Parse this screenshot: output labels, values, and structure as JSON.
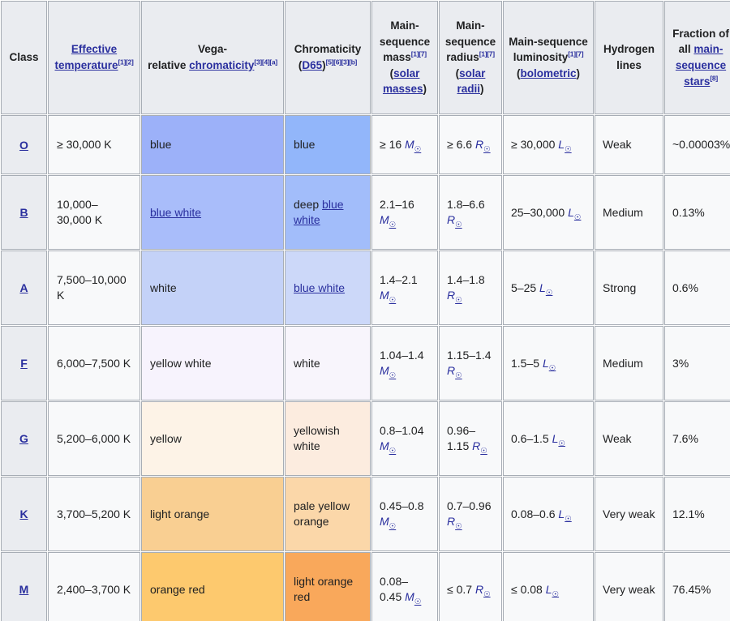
{
  "colors": {
    "header_bg": "#eaecf0",
    "cell_bg": "#f8f9fa",
    "border": "#a7adb5",
    "link": "#2a2f9e",
    "text": "#202122"
  },
  "solar_symbol": "☉",
  "header": {
    "columns": [
      {
        "key": "class",
        "segments": [
          {
            "t": "Class"
          }
        ]
      },
      {
        "key": "temperature",
        "segments": [
          {
            "a": "Effective temperature"
          },
          {
            "s": "[1][2]"
          }
        ]
      },
      {
        "key": "vega",
        "segments": [
          {
            "t": "Vega-"
          },
          {
            "b": 1
          },
          {
            "t": "relative "
          },
          {
            "a": "chromaticity"
          },
          {
            "s": "[3][4][a]"
          }
        ]
      },
      {
        "key": "d65",
        "segments": [
          {
            "t": "Chromaticity ("
          },
          {
            "a": "D65"
          },
          {
            "t": ")"
          },
          {
            "s": "[5][6][3][b]"
          }
        ]
      },
      {
        "key": "mass",
        "segments": [
          {
            "t": "Main-sequence mass"
          },
          {
            "s": "[1][7]"
          },
          {
            "t": " ("
          },
          {
            "a": "solar masses"
          },
          {
            "t": ")"
          }
        ]
      },
      {
        "key": "radius",
        "segments": [
          {
            "t": "Main-sequence radius"
          },
          {
            "s": "[1][7]"
          },
          {
            "t": " ("
          },
          {
            "a": "solar radii"
          },
          {
            "t": ")"
          }
        ]
      },
      {
        "key": "luminosity",
        "segments": [
          {
            "t": "Main-sequence luminosity"
          },
          {
            "s": "[1][7]"
          },
          {
            "t": " ("
          },
          {
            "a": "bolometric"
          },
          {
            "t": ")"
          }
        ]
      },
      {
        "key": "hydrogen",
        "segments": [
          {
            "t": "Hydrogen lines"
          }
        ]
      },
      {
        "key": "fraction",
        "segments": [
          {
            "t": "Fraction of all "
          },
          {
            "a": "main-sequence stars"
          },
          {
            "s": "[8]"
          }
        ]
      }
    ]
  },
  "rows": [
    {
      "class": "O",
      "temperature": "≥ 30,000 K",
      "vega": {
        "bg": "#9cb1f9",
        "segments": [
          {
            "t": "blue"
          }
        ]
      },
      "d65": {
        "bg": "#92b6fa",
        "segments": [
          {
            "t": "blue"
          }
        ]
      },
      "mass": [
        {
          "t": "≥ 16 "
        },
        {
          "y": "M"
        }
      ],
      "radius": [
        {
          "t": "≥ 6.6 "
        },
        {
          "y": "R"
        }
      ],
      "luminosity": [
        {
          "t": "≥ 30,000 "
        },
        {
          "y": "L"
        }
      ],
      "hydrogen": "Weak",
      "fraction": "~0.00003%"
    },
    {
      "class": "B",
      "temperature": "10,000–30,000 K",
      "vega": {
        "bg": "#a9bdfa",
        "segments": [
          {
            "a": "blue white"
          }
        ]
      },
      "d65": {
        "bg": "#a2bdfa",
        "segments": [
          {
            "t": "deep "
          },
          {
            "a": "blue white"
          }
        ]
      },
      "mass": [
        {
          "t": "2.1–16 "
        },
        {
          "y": "M"
        }
      ],
      "radius": [
        {
          "t": "1.8–6.6 "
        },
        {
          "y": "R"
        }
      ],
      "luminosity": [
        {
          "t": "25–30,000 "
        },
        {
          "y": "L"
        }
      ],
      "hydrogen": "Medium",
      "fraction": "0.13%"
    },
    {
      "class": "A",
      "temperature": "7,500–10,000 K",
      "vega": {
        "bg": "#c4d2f8",
        "segments": [
          {
            "t": "white"
          }
        ]
      },
      "d65": {
        "bg": "#ccd8f9",
        "segments": [
          {
            "a": "blue white"
          }
        ]
      },
      "mass": [
        {
          "t": "1.4–2.1 "
        },
        {
          "y": "M"
        }
      ],
      "radius": [
        {
          "t": "1.4–1.8 "
        },
        {
          "y": "R"
        }
      ],
      "luminosity": [
        {
          "t": "5–25 "
        },
        {
          "y": "L"
        }
      ],
      "hydrogen": "Strong",
      "fraction": "0.6%"
    },
    {
      "class": "F",
      "temperature": "6,000–7,500 K",
      "vega": {
        "bg": "#f7f3fd",
        "segments": [
          {
            "t": "yellow white"
          }
        ]
      },
      "d65": {
        "bg": "#f8f5fc",
        "segments": [
          {
            "t": "white"
          }
        ]
      },
      "mass": [
        {
          "t": "1.04–1.4 "
        },
        {
          "y": "M"
        }
      ],
      "radius": [
        {
          "t": "1.15–1.4 "
        },
        {
          "y": "R"
        }
      ],
      "luminosity": [
        {
          "t": "1.5–5 "
        },
        {
          "y": "L"
        }
      ],
      "hydrogen": "Medium",
      "fraction": "3%"
    },
    {
      "class": "G",
      "temperature": "5,200–6,000 K",
      "vega": {
        "bg": "#fdf3e7",
        "segments": [
          {
            "t": "yellow"
          }
        ]
      },
      "d65": {
        "bg": "#fcecdf",
        "segments": [
          {
            "t": "yellowish white"
          }
        ]
      },
      "mass": [
        {
          "t": "0.8–1.04 "
        },
        {
          "y": "M"
        }
      ],
      "radius": [
        {
          "t": "0.96–1.15 "
        },
        {
          "y": "R"
        }
      ],
      "luminosity": [
        {
          "t": "0.6–1.5 "
        },
        {
          "y": "L"
        }
      ],
      "hydrogen": "Weak",
      "fraction": "7.6%"
    },
    {
      "class": "K",
      "temperature": "3,700–5,200 K",
      "vega": {
        "bg": "#f9cf92",
        "segments": [
          {
            "t": "light orange"
          }
        ]
      },
      "d65": {
        "bg": "#fbd7a9",
        "segments": [
          {
            "t": "pale yellow orange"
          }
        ]
      },
      "mass": [
        {
          "t": "0.45–0.8 "
        },
        {
          "y": "M"
        }
      ],
      "radius": [
        {
          "t": "0.7–0.96 "
        },
        {
          "y": "R"
        }
      ],
      "luminosity": [
        {
          "t": "0.08–0.6 "
        },
        {
          "y": "L"
        }
      ],
      "hydrogen": "Very weak",
      "fraction": "12.1%"
    },
    {
      "class": "M",
      "temperature": "2,400–3,700 K",
      "vega": {
        "bg": "#fdc96e",
        "segments": [
          {
            "t": "orange red"
          }
        ]
      },
      "d65": {
        "bg": "#f9a85b",
        "segments": [
          {
            "t": "light orange red"
          }
        ]
      },
      "mass": [
        {
          "t": "0.08–0.45 "
        },
        {
          "y": "M"
        }
      ],
      "radius": [
        {
          "t": "≤ 0.7 "
        },
        {
          "y": "R"
        }
      ],
      "luminosity": [
        {
          "t": "≤ 0.08 "
        },
        {
          "y": "L"
        }
      ],
      "hydrogen": "Very weak",
      "fraction": "76.45%"
    }
  ]
}
